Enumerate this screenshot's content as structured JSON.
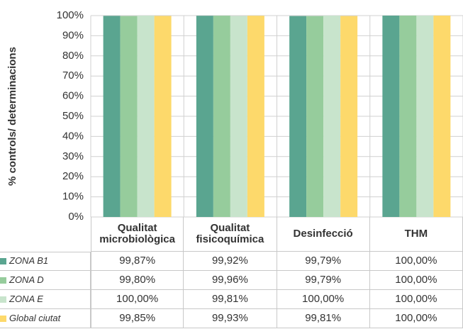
{
  "chart_data": {
    "type": "bar",
    "y_label": "% controls/ determinacions",
    "categories": [
      "Qualitat microbiològica",
      "Qualitat fisicoquímica",
      "Desinfecció",
      "THM"
    ],
    "series": [
      {
        "name": "ZONA B1",
        "color": "#5aa590",
        "values": [
          99.87,
          99.92,
          99.79,
          100
        ],
        "value_labels": [
          "99,87%",
          "99,92%",
          "99,79%",
          "100,00%"
        ]
      },
      {
        "name": "ZONA D",
        "color": "#96cc9c",
        "values": [
          99.8,
          99.96,
          99.79,
          100
        ],
        "value_labels": [
          "99,80%",
          "99,96%",
          "99,79%",
          "100,00%"
        ]
      },
      {
        "name": "ZONA E",
        "color": "#c8e4cc",
        "values": [
          100,
          99.81,
          100,
          100
        ],
        "value_labels": [
          "100,00%",
          "99,81%",
          "100,00%",
          "100,00%"
        ]
      },
      {
        "name": "Global ciutat",
        "color": "#fdd96b",
        "values": [
          99.85,
          99.93,
          99.81,
          100
        ],
        "value_labels": [
          "99,85%",
          "99,93%",
          "99,81%",
          "100,00%"
        ]
      }
    ],
    "ylim": [
      0,
      100
    ],
    "yticks": [
      {
        "value": 0,
        "label": "0%"
      },
      {
        "value": 10,
        "label": "10%"
      },
      {
        "value": 20,
        "label": "20%"
      },
      {
        "value": 30,
        "label": "30%"
      },
      {
        "value": 40,
        "label": "40%"
      },
      {
        "value": 50,
        "label": "50%"
      },
      {
        "value": 60,
        "label": "60%"
      },
      {
        "value": 70,
        "label": "70%"
      },
      {
        "value": 80,
        "label": "80%"
      },
      {
        "value": 90,
        "label": "90%"
      },
      {
        "value": 100,
        "label": "100%"
      }
    ],
    "grid": true
  }
}
